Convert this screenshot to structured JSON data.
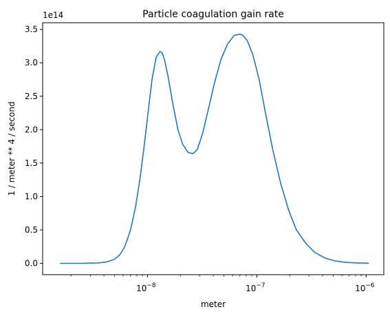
{
  "chart_data": {
    "type": "line",
    "title": "Particle coagulation gain rate",
    "xlabel": "meter",
    "ylabel": "1 / meter ** 4 / second",
    "x_scale": "log",
    "xlim": [
      1.1e-09,
      1.45e-06
    ],
    "ylim": [
      -17000000000000.0,
      360000000000000.0
    ],
    "y_offset_text": "1e14",
    "x_ticks": [
      {
        "value": 1e-08,
        "base": "10",
        "exp": "−8"
      },
      {
        "value": 1e-07,
        "base": "10",
        "exp": "−7"
      },
      {
        "value": 1e-06,
        "base": "10",
        "exp": "−6"
      }
    ],
    "y_ticks": [
      {
        "value": 0.0,
        "label": "0.0"
      },
      {
        "value": 0.5,
        "label": "0.5"
      },
      {
        "value": 1.0,
        "label": "1.0"
      },
      {
        "value": 1.5,
        "label": "1.5"
      },
      {
        "value": 2.0,
        "label": "2.0"
      },
      {
        "value": 2.5,
        "label": "2.5"
      },
      {
        "value": 3.0,
        "label": "3.0"
      },
      {
        "value": 3.5,
        "label": "3.5"
      }
    ],
    "series": [
      {
        "color": "#1f77b4",
        "x": [
          1.6e-09,
          2.5e-09,
          3.5e-09,
          4.2e-09,
          5e-09,
          5.6e-09,
          6.2e-09,
          7e-09,
          7.8e-09,
          8.6e-09,
          9.4e-09,
          1.02e-08,
          1.1e-08,
          1.2e-08,
          1.3e-08,
          1.36e-08,
          1.43e-08,
          1.55e-08,
          1.7e-08,
          1.9e-08,
          2.1e-08,
          2.35e-08,
          2.6e-08,
          2.85e-08,
          3.2e-08,
          3.6e-08,
          4.1e-08,
          4.7e-08,
          5.4e-08,
          6.2e-08,
          7e-08,
          7.5e-08,
          8.2e-08,
          9.2e-08,
          1.05e-07,
          1.2e-07,
          1.4e-07,
          1.65e-07,
          1.95e-07,
          2.3e-07,
          2.8e-07,
          3.4e-07,
          4.2e-07,
          5.2e-07,
          6.5e-07,
          8.2e-07,
          1.05e-06
        ],
        "y": [
          0.0,
          0.0,
          0.005,
          0.02,
          0.06,
          0.13,
          0.25,
          0.5,
          0.85,
          1.3,
          1.8,
          2.3,
          2.75,
          3.08,
          3.17,
          3.15,
          3.05,
          2.78,
          2.4,
          2.0,
          1.78,
          1.66,
          1.64,
          1.7,
          1.95,
          2.3,
          2.7,
          3.05,
          3.28,
          3.41,
          3.43,
          3.41,
          3.33,
          3.12,
          2.75,
          2.25,
          1.7,
          1.2,
          0.8,
          0.5,
          0.3,
          0.16,
          0.08,
          0.035,
          0.015,
          0.006,
          0.002
        ]
      }
    ]
  }
}
